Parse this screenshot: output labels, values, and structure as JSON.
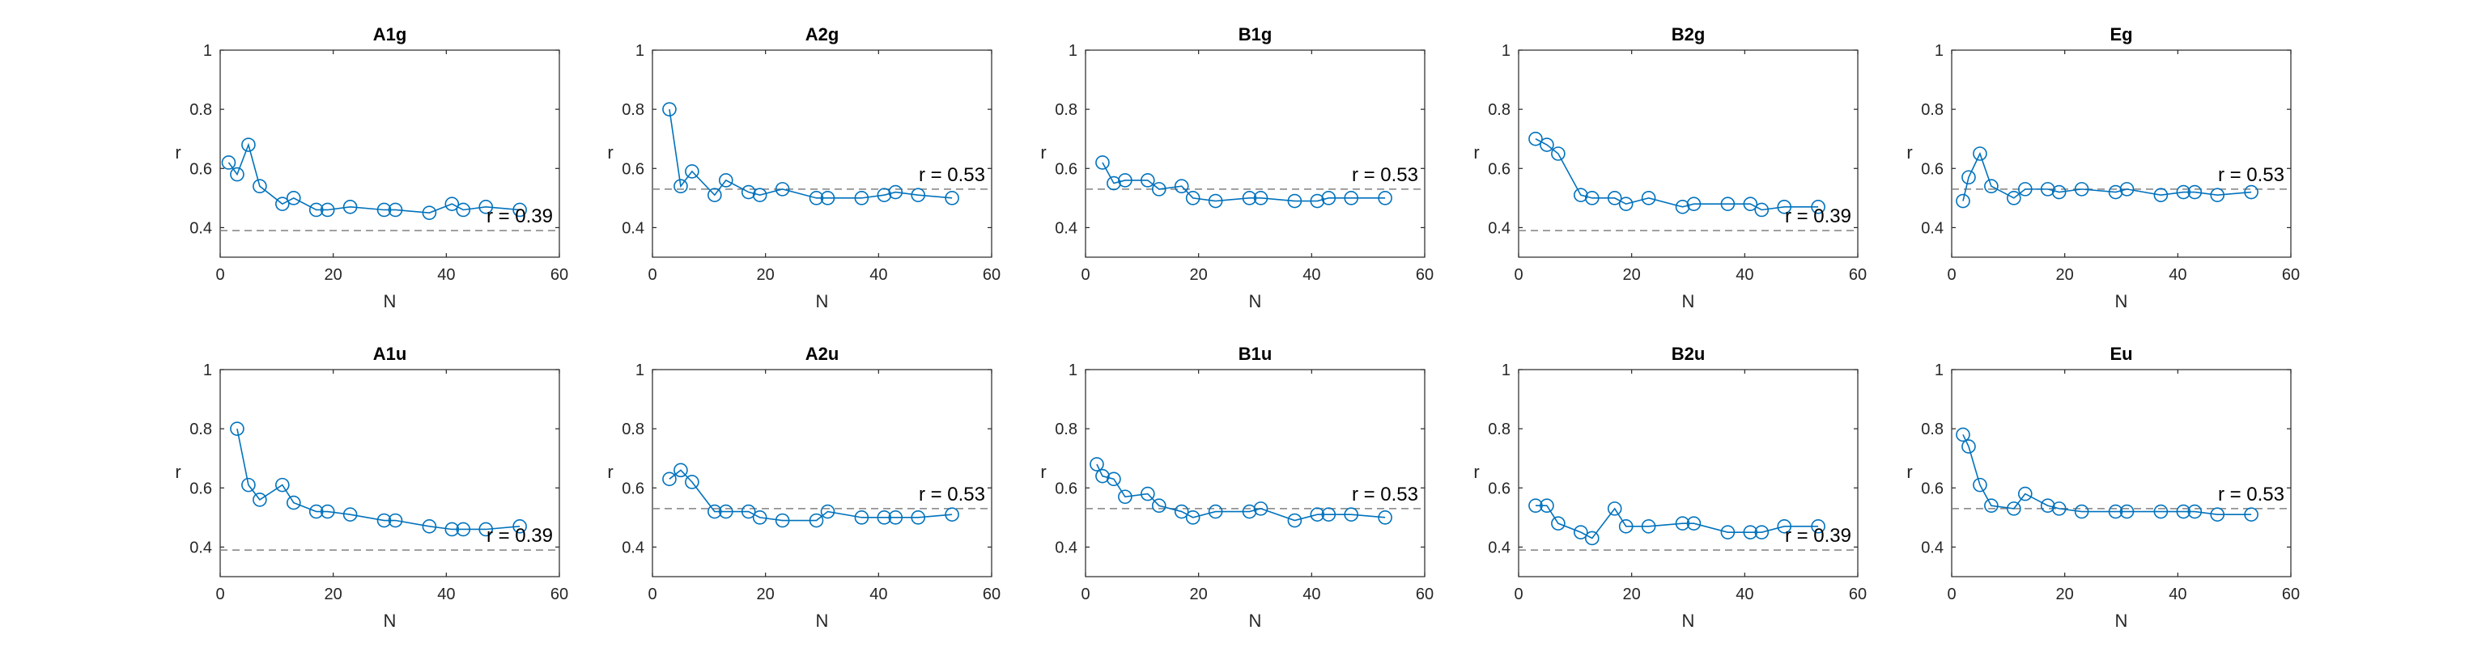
{
  "figure": {
    "background": "#ffffff",
    "series_color": "#0072BD",
    "ref_color": "#808080"
  },
  "chart_data": [
    {
      "type": "line",
      "title": "A1g",
      "xlabel": "N",
      "ylabel": "r",
      "xlim": [
        0,
        60
      ],
      "ylim": [
        0.3,
        1
      ],
      "xticks": [
        "0",
        "20",
        "40",
        "60"
      ],
      "yticks": [
        "0.4",
        "0.6",
        "0.8",
        "1"
      ],
      "ref": {
        "y": 0.39,
        "label": "r = 0.39"
      },
      "x": [
        1.5,
        3,
        5,
        7,
        11,
        13,
        17,
        19,
        23,
        29,
        31,
        37,
        41,
        43,
        47,
        53
      ],
      "y": [
        0.62,
        0.58,
        0.68,
        0.54,
        0.48,
        0.5,
        0.46,
        0.46,
        0.47,
        0.46,
        0.46,
        0.45,
        0.48,
        0.46,
        0.47,
        0.46
      ]
    },
    {
      "type": "line",
      "title": "A2g",
      "xlabel": "N",
      "ylabel": "r",
      "xlim": [
        0,
        60
      ],
      "ylim": [
        0.3,
        1
      ],
      "xticks": [
        "0",
        "20",
        "40",
        "60"
      ],
      "yticks": [
        "0.4",
        "0.6",
        "0.8",
        "1"
      ],
      "ref": {
        "y": 0.53,
        "label": "r = 0.53"
      },
      "x": [
        3,
        5,
        7,
        11,
        13,
        17,
        19,
        23,
        29,
        31,
        37,
        41,
        43,
        47,
        53
      ],
      "y": [
        0.8,
        0.54,
        0.59,
        0.51,
        0.56,
        0.52,
        0.51,
        0.53,
        0.5,
        0.5,
        0.5,
        0.51,
        0.52,
        0.51,
        0.5
      ]
    },
    {
      "type": "line",
      "title": "B1g",
      "xlabel": "N",
      "ylabel": "r",
      "xlim": [
        0,
        60
      ],
      "ylim": [
        0.3,
        1
      ],
      "xticks": [
        "0",
        "20",
        "40",
        "60"
      ],
      "yticks": [
        "0.4",
        "0.6",
        "0.8",
        "1"
      ],
      "ref": {
        "y": 0.53,
        "label": "r = 0.53"
      },
      "x": [
        3,
        5,
        7,
        11,
        13,
        17,
        19,
        23,
        29,
        31,
        37,
        41,
        43,
        47,
        53
      ],
      "y": [
        0.62,
        0.55,
        0.56,
        0.56,
        0.53,
        0.54,
        0.5,
        0.49,
        0.5,
        0.5,
        0.49,
        0.49,
        0.5,
        0.5,
        0.5
      ]
    },
    {
      "type": "line",
      "title": "B2g",
      "xlabel": "N",
      "ylabel": "r",
      "xlim": [
        0,
        60
      ],
      "ylim": [
        0.3,
        1
      ],
      "xticks": [
        "0",
        "20",
        "40",
        "60"
      ],
      "yticks": [
        "0.4",
        "0.6",
        "0.8",
        "1"
      ],
      "ref": {
        "y": 0.39,
        "label": "r = 0.39"
      },
      "x": [
        3,
        5,
        7,
        11,
        13,
        17,
        19,
        23,
        29,
        31,
        37,
        41,
        43,
        47,
        53
      ],
      "y": [
        0.7,
        0.68,
        0.65,
        0.51,
        0.5,
        0.5,
        0.48,
        0.5,
        0.47,
        0.48,
        0.48,
        0.48,
        0.46,
        0.47,
        0.47
      ]
    },
    {
      "type": "line",
      "title": "Eg",
      "xlabel": "N",
      "ylabel": "r",
      "xlim": [
        0,
        60
      ],
      "ylim": [
        0.3,
        1
      ],
      "xticks": [
        "0",
        "20",
        "40",
        "60"
      ],
      "yticks": [
        "0.4",
        "0.6",
        "0.8",
        "1"
      ],
      "ref": {
        "y": 0.53,
        "label": "r = 0.53"
      },
      "x": [
        2,
        3,
        5,
        7,
        11,
        13,
        17,
        19,
        23,
        29,
        31,
        37,
        41,
        43,
        47,
        53
      ],
      "y": [
        0.49,
        0.57,
        0.65,
        0.54,
        0.5,
        0.53,
        0.53,
        0.52,
        0.53,
        0.52,
        0.53,
        0.51,
        0.52,
        0.52,
        0.51,
        0.52
      ]
    },
    {
      "type": "line",
      "title": "A1u",
      "xlabel": "N",
      "ylabel": "r",
      "xlim": [
        0,
        60
      ],
      "ylim": [
        0.3,
        1
      ],
      "xticks": [
        "0",
        "20",
        "40",
        "60"
      ],
      "yticks": [
        "0.4",
        "0.6",
        "0.8",
        "1"
      ],
      "ref": {
        "y": 0.39,
        "label": "r = 0.39"
      },
      "x": [
        3,
        5,
        7,
        11,
        13,
        17,
        19,
        23,
        29,
        31,
        37,
        41,
        43,
        47,
        53
      ],
      "y": [
        0.8,
        0.61,
        0.56,
        0.61,
        0.55,
        0.52,
        0.52,
        0.51,
        0.49,
        0.49,
        0.47,
        0.46,
        0.46,
        0.46,
        0.47
      ]
    },
    {
      "type": "line",
      "title": "A2u",
      "xlabel": "N",
      "ylabel": "r",
      "xlim": [
        0,
        60
      ],
      "ylim": [
        0.3,
        1
      ],
      "xticks": [
        "0",
        "20",
        "40",
        "60"
      ],
      "yticks": [
        "0.4",
        "0.6",
        "0.8",
        "1"
      ],
      "ref": {
        "y": 0.53,
        "label": "r = 0.53"
      },
      "x": [
        3,
        5,
        7,
        11,
        13,
        17,
        19,
        23,
        29,
        31,
        37,
        41,
        43,
        47,
        53
      ],
      "y": [
        0.63,
        0.66,
        0.62,
        0.52,
        0.52,
        0.52,
        0.5,
        0.49,
        0.49,
        0.52,
        0.5,
        0.5,
        0.5,
        0.5,
        0.51
      ]
    },
    {
      "type": "line",
      "title": "B1u",
      "xlabel": "N",
      "ylabel": "r",
      "xlim": [
        0,
        60
      ],
      "ylim": [
        0.3,
        1
      ],
      "xticks": [
        "0",
        "20",
        "40",
        "60"
      ],
      "yticks": [
        "0.4",
        "0.6",
        "0.8",
        "1"
      ],
      "ref": {
        "y": 0.53,
        "label": "r = 0.53"
      },
      "x": [
        2,
        3,
        5,
        7,
        11,
        13,
        17,
        19,
        23,
        29,
        31,
        37,
        41,
        43,
        47,
        53
      ],
      "y": [
        0.68,
        0.64,
        0.63,
        0.57,
        0.58,
        0.54,
        0.52,
        0.5,
        0.52,
        0.52,
        0.53,
        0.49,
        0.51,
        0.51,
        0.51,
        0.5
      ]
    },
    {
      "type": "line",
      "title": "B2u",
      "xlabel": "N",
      "ylabel": "r",
      "xlim": [
        0,
        60
      ],
      "ylim": [
        0.3,
        1
      ],
      "xticks": [
        "0",
        "20",
        "40",
        "60"
      ],
      "yticks": [
        "0.4",
        "0.6",
        "0.8",
        "1"
      ],
      "ref": {
        "y": 0.39,
        "label": "r = 0.39"
      },
      "x": [
        3,
        5,
        7,
        11,
        13,
        17,
        19,
        23,
        29,
        31,
        37,
        41,
        43,
        47,
        53
      ],
      "y": [
        0.54,
        0.54,
        0.48,
        0.45,
        0.43,
        0.53,
        0.47,
        0.47,
        0.48,
        0.48,
        0.45,
        0.45,
        0.45,
        0.47,
        0.47
      ]
    },
    {
      "type": "line",
      "title": "Eu",
      "xlabel": "N",
      "ylabel": "r",
      "xlim": [
        0,
        60
      ],
      "ylim": [
        0.3,
        1
      ],
      "xticks": [
        "0",
        "20",
        "40",
        "60"
      ],
      "yticks": [
        "0.4",
        "0.6",
        "0.8",
        "1"
      ],
      "ref": {
        "y": 0.53,
        "label": "r = 0.53"
      },
      "x": [
        2,
        3,
        5,
        7,
        11,
        13,
        17,
        19,
        23,
        29,
        31,
        37,
        41,
        43,
        47,
        53
      ],
      "y": [
        0.78,
        0.74,
        0.61,
        0.54,
        0.53,
        0.58,
        0.54,
        0.53,
        0.52,
        0.52,
        0.52,
        0.52,
        0.52,
        0.52,
        0.51,
        0.51
      ]
    }
  ]
}
